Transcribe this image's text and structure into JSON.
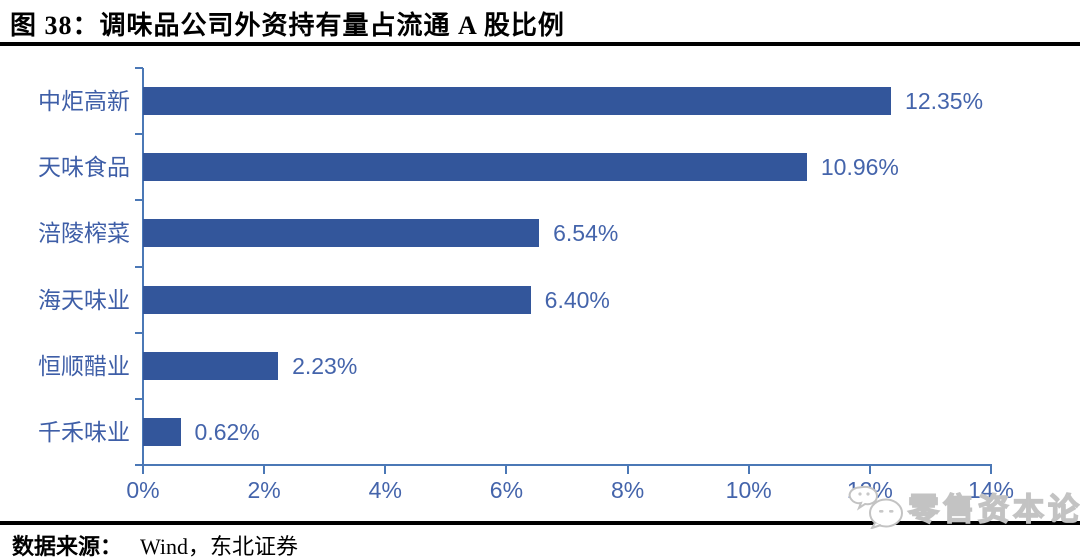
{
  "figure": {
    "title": "图  38：调味品公司外资持有量占流通 A 股比例",
    "source_label": "数据来源：",
    "source_value": "Wind，东北证券"
  },
  "watermark": {
    "icon": "wechat-icon",
    "text": "零售资本论"
  },
  "chart_data": {
    "type": "bar",
    "orientation": "horizontal",
    "title": "调味品公司外资持有量占流通 A 股比例",
    "categories": [
      "中炬高新",
      "天味食品",
      "涪陵榨菜",
      "海天味业",
      "恒顺醋业",
      "千禾味业"
    ],
    "values": [
      12.35,
      10.96,
      6.54,
      6.4,
      2.23,
      0.62
    ],
    "value_labels": [
      "12.35%",
      "10.96%",
      "6.54%",
      "6.40%",
      "2.23%",
      "0.62%"
    ],
    "x_ticks": [
      "0%",
      "2%",
      "4%",
      "6%",
      "8%",
      "10%",
      "12%",
      "14%"
    ],
    "x_tick_values": [
      0,
      2,
      4,
      6,
      8,
      10,
      12,
      14
    ],
    "xlim": [
      0,
      14
    ],
    "xlabel": "",
    "ylabel": "",
    "grid": false,
    "legend": "none",
    "colors": {
      "bar": "#33569b",
      "axis": "#4b78b6",
      "category_label": "#3e5ea7",
      "value_label": "#4464ab",
      "tick_label": "#4464ab"
    }
  }
}
